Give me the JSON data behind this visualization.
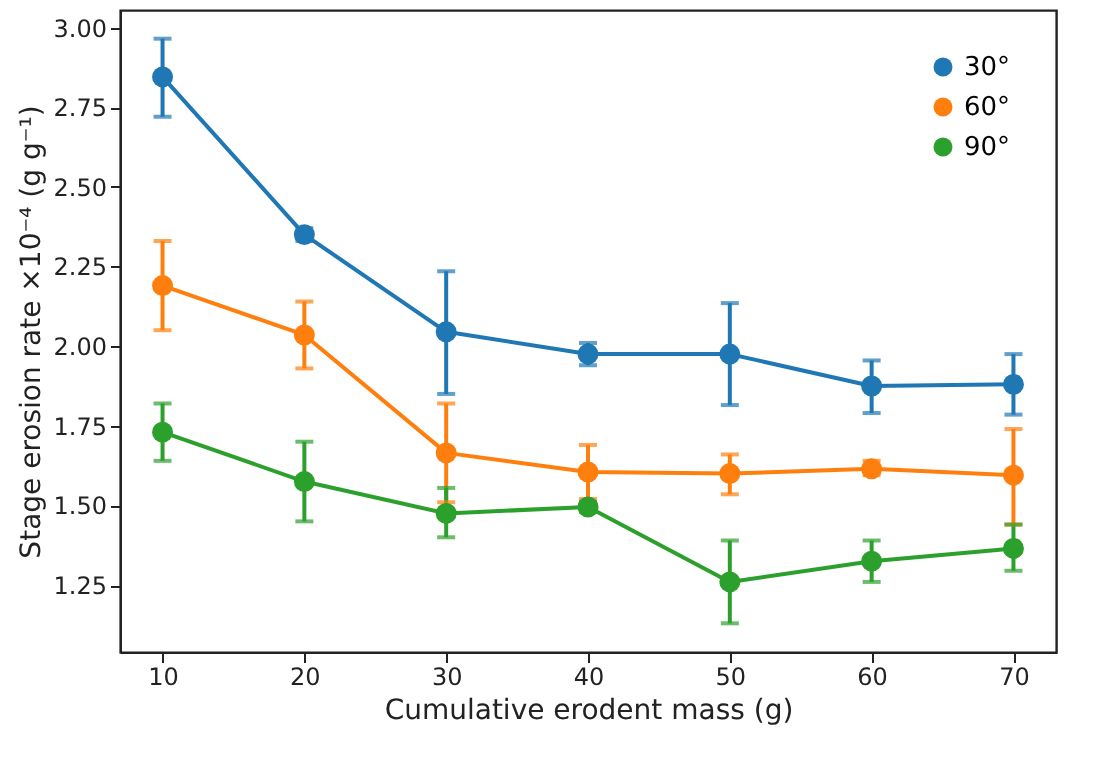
{
  "chart_data": {
    "type": "line",
    "xlabel": "Cumulative erodent mass (g)",
    "ylabel": "Stage erosion rate ×10⁻⁴ (g g⁻¹)",
    "x": [
      10,
      20,
      30,
      40,
      50,
      60,
      70
    ],
    "xlim": [
      7,
      73
    ],
    "xticks": [
      10,
      20,
      30,
      40,
      50,
      60,
      70
    ],
    "ylim": [
      1.04,
      3.055
    ],
    "yticks": [
      {
        "value": 1.25,
        "label": "1.25"
      },
      {
        "value": 1.5,
        "label": "1.50"
      },
      {
        "value": 1.75,
        "label": "1.75"
      },
      {
        "value": 2,
        "label": "2.00"
      },
      {
        "value": 2.25,
        "label": "2.25"
      },
      {
        "value": 2.5,
        "label": "2.50"
      },
      {
        "value": 2.75,
        "label": "2.75"
      },
      {
        "value": 3,
        "label": "3.00"
      }
    ],
    "grid": false,
    "legend": "top right",
    "marker": "circle",
    "line_style": "solid",
    "series": [
      {
        "name": "30°",
        "color": "#1f77b4",
        "values": [
          2.845,
          2.35,
          2.045,
          1.975,
          1.975,
          1.875,
          1.88
        ],
        "errors": [
          [
            2.72,
            2.965
          ],
          [
            2.33,
            2.37
          ],
          [
            1.85,
            2.235
          ],
          [
            1.94,
            2.01
          ],
          [
            1.815,
            2.135
          ],
          [
            1.79,
            1.955
          ],
          [
            1.785,
            1.975
          ]
        ]
      },
      {
        "name": "60°",
        "color": "#ff7f0e",
        "values": [
          2.19,
          2.035,
          1.665,
          1.605,
          1.6,
          1.615,
          1.595
        ],
        "errors": [
          [
            2.05,
            2.33
          ],
          [
            1.93,
            2.14
          ],
          [
            1.51,
            1.82
          ],
          [
            1.52,
            1.69
          ],
          [
            1.535,
            1.66
          ],
          [
            1.595,
            1.64
          ],
          [
            1.44,
            1.74
          ]
        ]
      },
      {
        "name": "90°",
        "color": "#2ca02c",
        "values": [
          1.73,
          1.575,
          1.475,
          1.495,
          1.26,
          1.325,
          1.365
        ],
        "errors": [
          [
            1.64,
            1.82
          ],
          [
            1.45,
            1.7
          ],
          [
            1.4,
            1.555
          ],
          [
            1.48,
            1.51
          ],
          [
            1.13,
            1.39
          ],
          [
            1.26,
            1.39
          ],
          [
            1.295,
            1.44
          ]
        ]
      }
    ]
  }
}
